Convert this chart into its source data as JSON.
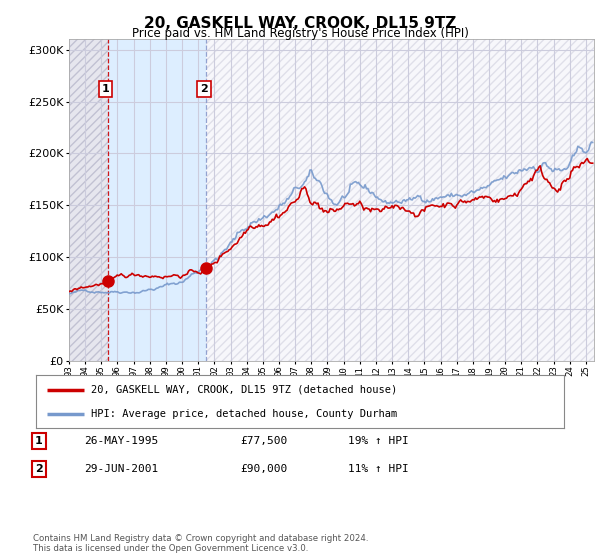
{
  "title": "20, GASKELL WAY, CROOK, DL15 9TZ",
  "subtitle": "Price paid vs. HM Land Registry's House Price Index (HPI)",
  "ylim": [
    0,
    310000
  ],
  "yticks": [
    0,
    50000,
    100000,
    150000,
    200000,
    250000,
    300000
  ],
  "background_color": "#ffffff",
  "plot_bg_color": "#ffffff",
  "hatch_bg_color": "#e0e0ea",
  "blue_shade_color": "#ddeeff",
  "grid_color": "#ccccdd",
  "red_color": "#cc0000",
  "blue_color": "#7799cc",
  "transaction1": {
    "date_num": 1995.4,
    "price": 77500,
    "label": "1"
  },
  "transaction2": {
    "date_num": 2001.5,
    "price": 90000,
    "label": "2"
  },
  "legend_entry1": "20, GASKELL WAY, CROOK, DL15 9TZ (detached house)",
  "legend_entry2": "HPI: Average price, detached house, County Durham",
  "table_row1": [
    "1",
    "26-MAY-1995",
    "£77,500",
    "19% ↑ HPI"
  ],
  "table_row2": [
    "2",
    "29-JUN-2001",
    "£90,000",
    "11% ↑ HPI"
  ],
  "footer": "Contains HM Land Registry data © Crown copyright and database right 2024.\nThis data is licensed under the Open Government Licence v3.0.",
  "xmin": 1993.0,
  "xmax": 2025.5
}
